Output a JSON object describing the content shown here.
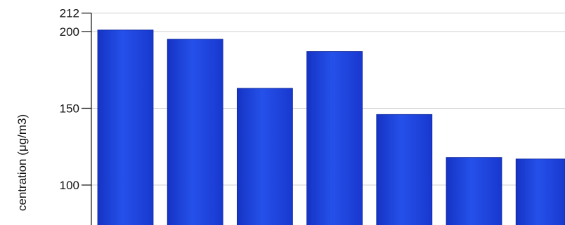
{
  "chart_data": {
    "type": "bar",
    "title": "",
    "xlabel": "",
    "ylabel": "centration (μg/m3)",
    "ylim_visible": [
      78,
      212
    ],
    "yticks": [
      212,
      200,
      150,
      100
    ],
    "grid": true,
    "bar_color": "#1a3fd6",
    "bar_highlight": "#2a55ee",
    "gridline_color": "#cfcfcf",
    "categories": [
      "",
      "",
      "",
      "",
      "",
      "",
      ""
    ],
    "values": [
      201,
      195,
      163,
      187,
      146,
      118,
      117
    ]
  }
}
